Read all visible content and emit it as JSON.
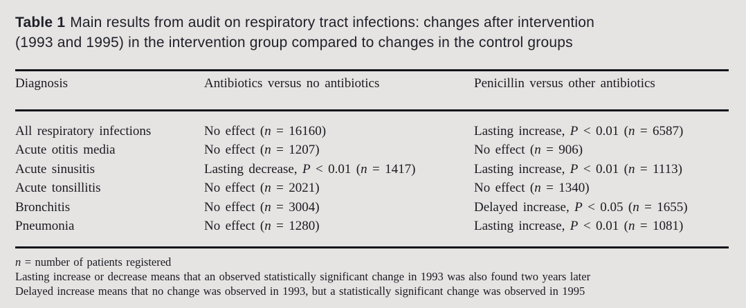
{
  "heading": {
    "label": "Table 1",
    "line1": "Main results from audit on respiratory tract infections: changes after intervention",
    "line2": "(1993 and 1995) in the intervention group compared to changes in the control groups"
  },
  "table": {
    "columns": [
      "Diagnosis",
      "Antibiotics versus no antibiotics",
      "Penicillin versus other antibiotics"
    ],
    "rows": [
      {
        "diagnosis": "All respiratory infections",
        "antibiotics_vs_no_antibiotics": "No effect (n = 16160)",
        "penicillin_vs_other_antibiotics": "Lasting increase, P < 0.01 (n = 6587)"
      },
      {
        "diagnosis": "Acute otitis media",
        "antibiotics_vs_no_antibiotics": "No effect (n = 1207)",
        "penicillin_vs_other_antibiotics": "No effect (n = 906)"
      },
      {
        "diagnosis": "Acute sinusitis",
        "antibiotics_vs_no_antibiotics": "Lasting decrease, P < 0.01 (n = 1417)",
        "penicillin_vs_other_antibiotics": "Lasting increase, P < 0.01 (n = 1113)"
      },
      {
        "diagnosis": "Acute tonsillitis",
        "antibiotics_vs_no_antibiotics": "No effect (n = 2021)",
        "penicillin_vs_other_antibiotics": "No effect (n = 1340)"
      },
      {
        "diagnosis": "Bronchitis",
        "antibiotics_vs_no_antibiotics": "No effect (n = 3004)",
        "penicillin_vs_other_antibiotics": "Delayed increase, P < 0.05 (n = 1655)"
      },
      {
        "diagnosis": "Pneumonia",
        "antibiotics_vs_no_antibiotics": "No effect (n = 1280)",
        "penicillin_vs_other_antibiotics": "Lasting increase, P < 0.01 (n = 1081)"
      }
    ],
    "footnotes": [
      "n = number of patients registered",
      "Lasting increase or decrease means that an observed statistically significant change in 1993 was also found two years later",
      "Delayed increase means that no change was observed in 1993, but a statistically significant change was observed in 1995"
    ]
  },
  "colors": {
    "background": "#e5e4e2",
    "text": "#1a1a22",
    "rule": "#13131a"
  }
}
